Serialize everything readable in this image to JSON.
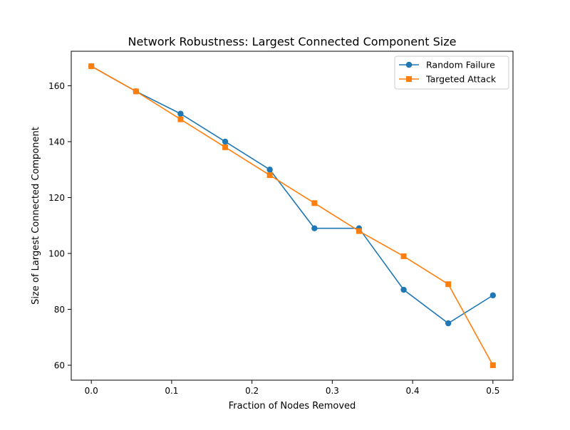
{
  "chart_data": {
    "type": "line",
    "title": "Network Robustness: Largest Connected Component Size",
    "xlabel": "Fraction of Nodes Removed",
    "ylabel": "Size of Largest Connected Component",
    "xlim": [
      -0.025,
      0.525
    ],
    "ylim": [
      54.65,
      172.35
    ],
    "x_ticks": [
      0.0,
      0.1,
      0.2,
      0.3,
      0.4,
      0.5
    ],
    "x_tick_labels": [
      "0.0",
      "0.1",
      "0.2",
      "0.3",
      "0.4",
      "0.5"
    ],
    "y_ticks": [
      60,
      80,
      100,
      120,
      140,
      160
    ],
    "y_tick_labels": [
      "60",
      "80",
      "100",
      "120",
      "140",
      "160"
    ],
    "grid": false,
    "legend_position": "top-right",
    "x": [
      0.0,
      0.0556,
      0.1111,
      0.1667,
      0.2222,
      0.2778,
      0.3333,
      0.3889,
      0.4444,
      0.5
    ],
    "series": [
      {
        "name": "Random Failure",
        "color": "#1f77b4",
        "marker": "circle",
        "values": [
          167,
          158,
          150,
          140,
          130,
          109,
          109,
          87,
          75,
          85
        ]
      },
      {
        "name": "Targeted Attack",
        "color": "#ff7f0e",
        "marker": "square",
        "values": [
          167,
          158,
          148,
          138,
          128,
          118,
          108,
          99,
          89,
          60
        ]
      }
    ]
  }
}
